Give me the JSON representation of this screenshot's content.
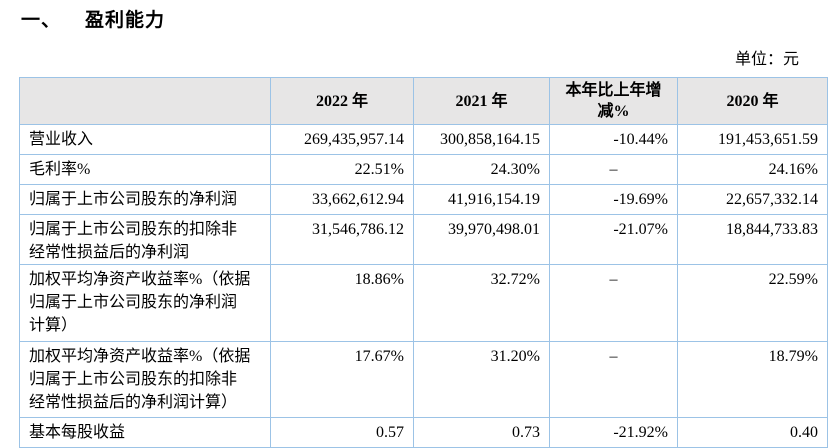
{
  "page": {
    "section_number": "一、",
    "section_title": "盈利能力",
    "unit_label": "单位：元"
  },
  "colors": {
    "table_border": "#9CC3E6",
    "header_background": "#E7E6E6",
    "text": "#000000"
  },
  "table": {
    "headers": [
      "",
      "2022 年",
      "2021 年",
      "本年比上年增\n减%",
      "2020 年"
    ],
    "rows": [
      {
        "label": "营业收入",
        "y2022": "269,435,957.14",
        "y2021": "300,858,164.15",
        "change": "-10.44%",
        "y2020": "191,453,651.59"
      },
      {
        "label": "毛利率%",
        "y2022": "22.51%",
        "y2021": "24.30%",
        "change": "–",
        "y2020": "24.16%"
      },
      {
        "label": "归属于上市公司股东的净利润",
        "y2022": "33,662,612.94",
        "y2021": "41,916,154.19",
        "change": "-19.69%",
        "y2020": "22,657,332.14"
      },
      {
        "label": "归属于上市公司股东的扣除非\n经常性损益后的净利润",
        "y2022": "31,546,786.12",
        "y2021": "39,970,498.01",
        "change": "-21.07%",
        "y2020": "18,844,733.83"
      },
      {
        "label": "加权平均净资产收益率%（依据\n归属于上市公司股东的净利润\n计算）",
        "y2022": "18.86%",
        "y2021": "32.72%",
        "change": "–",
        "y2020": "22.59%"
      },
      {
        "label": "加权平均净资产收益率%（依据\n归属于上市公司股东的扣除非\n经常性损益后的净利润计算）",
        "y2022": "17.67%",
        "y2021": "31.20%",
        "change": "–",
        "y2020": "18.79%"
      },
      {
        "label": "基本每股收益",
        "y2022": "0.57",
        "y2021": "0.73",
        "change": "-21.92%",
        "y2020": "0.40"
      }
    ]
  }
}
